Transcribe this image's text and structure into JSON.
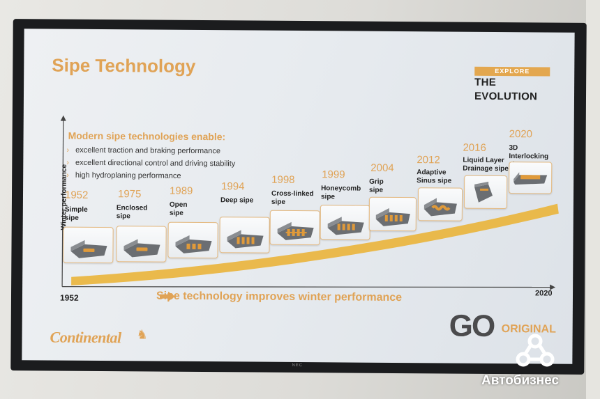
{
  "slide": {
    "title": "Sipe Technology",
    "explore_top": "EXPLORE",
    "explore_bottom": "THE EVOLUTION",
    "benefits_heading": "Modern sipe technologies enable:",
    "benefits": [
      "excellent traction and braking performance",
      "excellent directional control and driving stability",
      "high hydroplaning performance"
    ],
    "y_axis_label": "Winter performance",
    "x_start": "1952",
    "x_end": "2020",
    "caption": "Sipe technology improves winter performance",
    "timeline": [
      {
        "year": "1952",
        "name": "Simple sipe"
      },
      {
        "year": "1975",
        "name": "Enclosed sipe"
      },
      {
        "year": "1989",
        "name": "Open sipe"
      },
      {
        "year": "1994",
        "name": "Deep sipe"
      },
      {
        "year": "1998",
        "name": "Cross-linked sipe"
      },
      {
        "year": "1999",
        "name": "Honeycomb sipe"
      },
      {
        "year": "2004",
        "name": "Grip sipe"
      },
      {
        "year": "2012",
        "name": "Adaptive Sinus sipe"
      },
      {
        "year": "2016",
        "name": "Liquid Layer Drainage sipe"
      },
      {
        "year": "2020",
        "name": "3D Interlocking sipe"
      }
    ],
    "logo": "Continental",
    "go_text": "GO",
    "original_text": "ORIGINAL",
    "accent_color": "#e0a356",
    "icons": [
      "chevron-right-icon",
      "arrow-right-icon",
      "tread-block-icon",
      "horse-icon"
    ]
  },
  "monitor": {
    "brand": "NEC"
  },
  "watermark": {
    "text": "Автобизнес",
    "icon": "network-triangle-icon"
  }
}
